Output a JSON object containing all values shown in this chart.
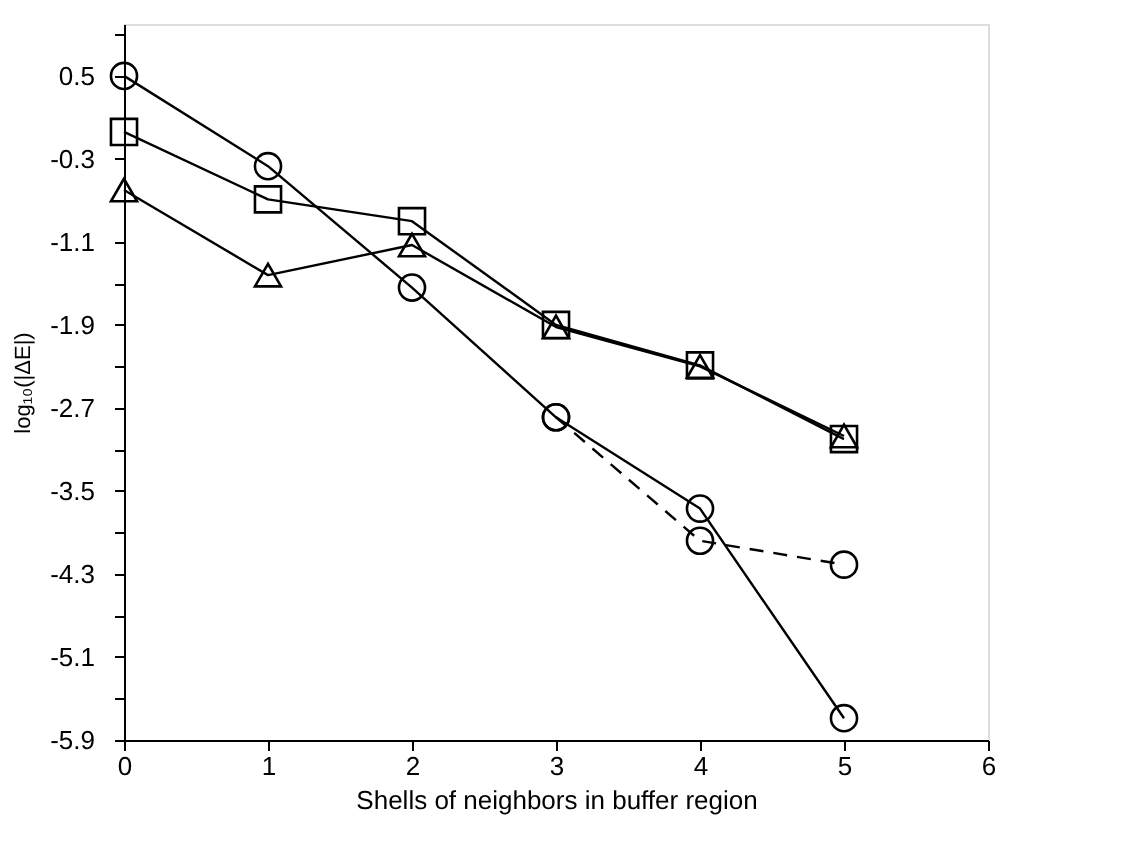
{
  "chart_data": {
    "type": "line",
    "xlabel": "Shells of neighbors in buffer region",
    "ylabel": "log₁₀(|ΔE|)",
    "xlim": [
      0,
      6
    ],
    "xticks": [
      0,
      1,
      2,
      3,
      4,
      5,
      6
    ],
    "ylim": [
      -5.9,
      1.0
    ],
    "yticks": [
      -5.9,
      {
        "value": -5.5,
        "label": null
      },
      -5.1,
      {
        "value": -4.7,
        "label": null
      },
      -4.3,
      {
        "value": -3.9,
        "label": null
      },
      -3.5,
      {
        "value": -3.1,
        "label": null
      },
      -2.7,
      {
        "value": -2.3,
        "label": null
      },
      -1.9,
      {
        "value": -1.5,
        "label": null
      },
      -1.1,
      {
        "value": -0.7,
        "label": null
      },
      -0.3,
      {
        "value": 0.1,
        "label": null
      },
      0.5,
      {
        "value": 0.9,
        "label": null
      }
    ],
    "grid": false,
    "series": [
      {
        "color": "#000000",
        "marker": "circle",
        "line_style": "solid",
        "x": [
          0,
          1,
          2,
          3,
          4,
          5
        ],
        "values": [
          0.5,
          -0.37,
          -1.54,
          -2.79,
          -3.67,
          -5.69
        ]
      },
      {
        "color": "#000000",
        "marker": "circle",
        "line_style": "dashed",
        "x": [
          3,
          4,
          5
        ],
        "values": [
          -2.79,
          -3.98,
          -4.21
        ]
      },
      {
        "color": "#000000",
        "marker": "square",
        "line_style": "solid",
        "x": [
          0,
          1,
          2,
          3,
          4,
          5
        ],
        "values": [
          -0.04,
          -0.69,
          -0.9,
          -1.9,
          -2.29,
          -3.0
        ]
      },
      {
        "color": "#000000",
        "marker": "triangle",
        "line_style": "solid",
        "x": [
          0,
          1,
          2,
          3,
          4,
          5
        ],
        "values": [
          -0.6,
          -1.42,
          -1.13,
          -1.92,
          -2.3,
          -2.97
        ]
      }
    ]
  }
}
